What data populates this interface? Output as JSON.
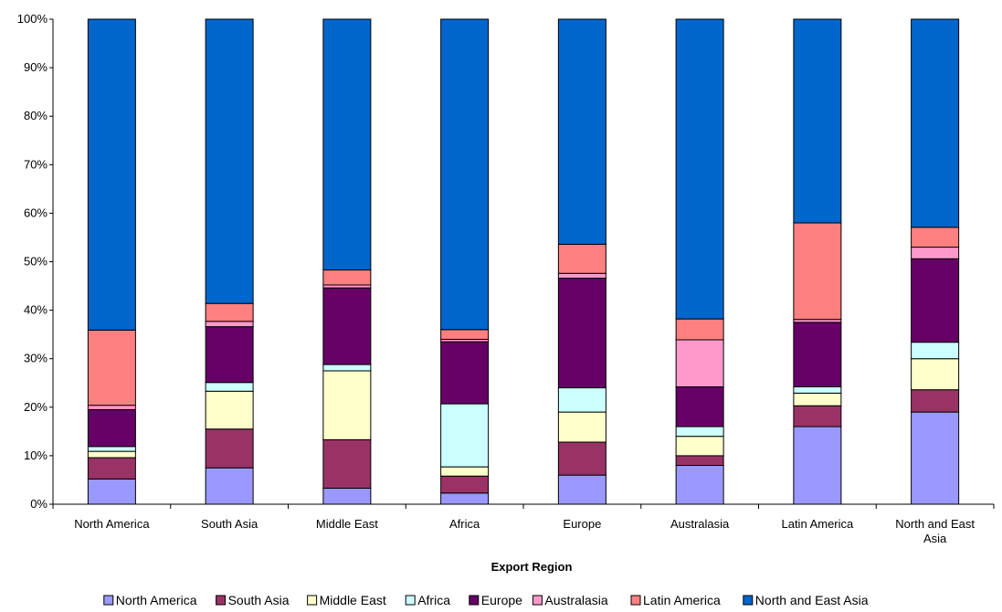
{
  "chart_data": {
    "type": "bar",
    "stacked": "percent",
    "xlabel": "Export Region",
    "ylabel": "",
    "title": "",
    "ylim": [
      0,
      100
    ],
    "yticks": [
      "0%",
      "10%",
      "20%",
      "30%",
      "40%",
      "50%",
      "60%",
      "70%",
      "80%",
      "90%",
      "100%"
    ],
    "grid": false,
    "legend_position": "bottom",
    "categories": [
      "North America",
      "South Asia",
      "Middle East",
      "Africa",
      "Europe",
      "Australasia",
      "Latin America",
      "North and East Asia"
    ],
    "series": [
      {
        "name": "North America",
        "color": "#9999FF",
        "values": [
          5.2,
          7.5,
          3.3,
          2.3,
          6.0,
          8.0,
          16.0,
          19.0
        ]
      },
      {
        "name": "South Asia",
        "color": "#993366",
        "values": [
          4.4,
          8.0,
          10.0,
          3.5,
          6.8,
          2.0,
          4.3,
          4.6
        ]
      },
      {
        "name": "Middle East",
        "color": "#FFFFCC",
        "values": [
          1.3,
          7.8,
          14.2,
          1.9,
          6.2,
          4.0,
          2.6,
          6.4
        ]
      },
      {
        "name": "Africa",
        "color": "#CCFFFF",
        "values": [
          1.0,
          1.8,
          1.3,
          13.0,
          5.0,
          2.0,
          1.3,
          3.4
        ]
      },
      {
        "name": "Europe",
        "color": "#660066",
        "values": [
          7.6,
          11.5,
          15.8,
          12.8,
          22.6,
          8.2,
          13.3,
          17.2
        ]
      },
      {
        "name": "Australasia",
        "color": "#FF99CC",
        "values": [
          0.9,
          1.1,
          0.6,
          0.5,
          1.0,
          9.7,
          0.6,
          2.4
        ]
      },
      {
        "name": "Latin America",
        "color": "#FF8080",
        "values": [
          15.5,
          3.7,
          3.1,
          2.0,
          6.0,
          4.3,
          19.9,
          4.1
        ]
      },
      {
        "name": "North and East Asia",
        "color": "#0066CC",
        "values": [
          64.1,
          58.6,
          51.7,
          64.0,
          46.4,
          61.8,
          42.0,
          42.9
        ]
      }
    ]
  }
}
